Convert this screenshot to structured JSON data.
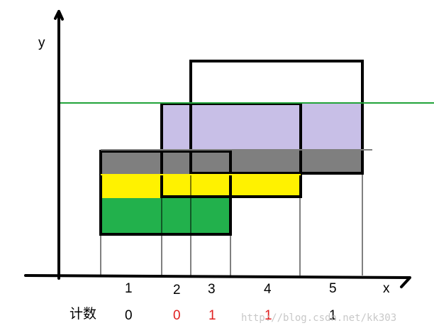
{
  "axes": {
    "x_label": "x",
    "y_label": "y"
  },
  "segments": [
    "1",
    "2",
    "3",
    "4",
    "5"
  ],
  "count_row": {
    "label": "计数",
    "values": [
      {
        "value": "0",
        "color": "#000000"
      },
      {
        "value": "0",
        "color": "#e02020"
      },
      {
        "value": "1",
        "color": "#e02020"
      },
      {
        "value": "1",
        "color": "#e02020"
      },
      {
        "value": "1",
        "color": "#000000"
      }
    ]
  },
  "watermark": "http://blog.csdn.net/kk303",
  "colors": {
    "green_fill": "#22b14c",
    "yellow_fill": "#fff200",
    "gray_fill": "#7f7f7f",
    "purple_fill": "#c8bfe7",
    "green_line": "#22a33a",
    "gray_line": "#7f7f7f",
    "yellow_line": "#fff200",
    "count_red": "#e02020"
  }
}
